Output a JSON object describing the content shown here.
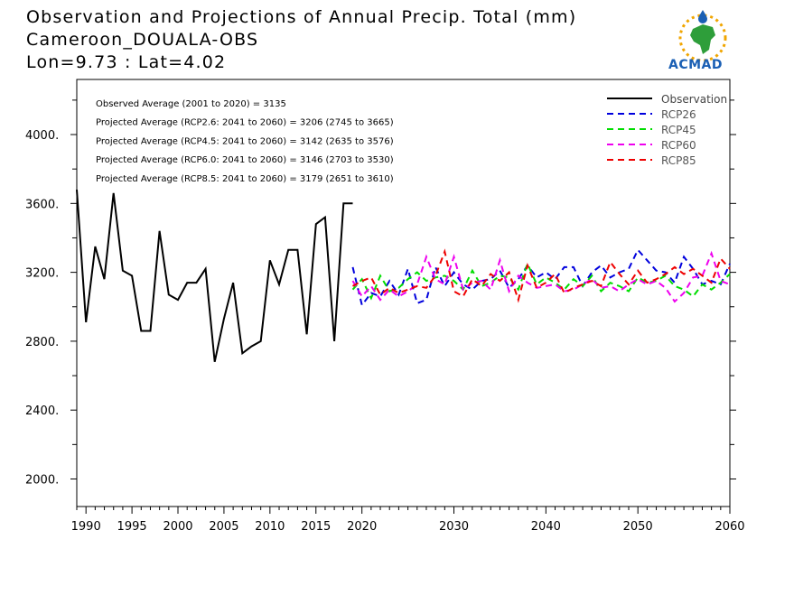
{
  "header": {
    "title": "Observation and Projections of Annual Precip. Total (mm)",
    "station": "Cameroon_DOUALA-OBS",
    "coords": "Lon=9.73 : Lat=4.02",
    "logo_text": "ACMAD"
  },
  "colors": {
    "Observation": "#000000",
    "RCP26": "#0000dd",
    "RCP45": "#00dd00",
    "RCP60": "#ee00ee",
    "RCP85": "#ee0000"
  },
  "chart_data": {
    "type": "line",
    "title": "Observation and Projections of Annual Precip. Total (mm)",
    "xlim": [
      1989,
      2060
    ],
    "ylim": [
      1840,
      4320
    ],
    "x_ticks": [
      1990,
      1995,
      2000,
      2005,
      2010,
      2015,
      2020,
      2030,
      2040,
      2050,
      2060
    ],
    "y_ticks": [
      2000,
      2400,
      2800,
      3200,
      3600,
      4000
    ],
    "y_tick_labels": [
      "2000.",
      "2400.",
      "2800.",
      "3200.",
      "3600.",
      "4000."
    ],
    "legend_position": "top-right",
    "annotations": [
      "Observed Average (2001 to 2020) = 3135",
      "Projected Average (RCP2.6: 2041 to 2060) = 3206 (2745 to 3665)",
      "Projected Average (RCP4.5: 2041 to 2060) = 3142 (2635 to 3576)",
      "Projected Average (RCP6.0: 2041 to 2060) = 3146 (2703 to 3530)",
      "Projected Average (RCP8.5: 2041 to 2060) = 3179 (2651 to 3610)"
    ],
    "series": [
      {
        "name": "Observation",
        "style": "solid",
        "x": [
          1989,
          1990,
          1991,
          1992,
          1993,
          1994,
          1995,
          1996,
          1997,
          1998,
          1999,
          2000,
          2001,
          2002,
          2003,
          2004,
          2005,
          2006,
          2007,
          2008,
          2009,
          2010,
          2011,
          2012,
          2013,
          2014,
          2015,
          2016,
          2017,
          2018,
          2019
        ],
        "y": [
          3680,
          2910,
          3350,
          3160,
          3660,
          3210,
          3180,
          2860,
          2860,
          3440,
          3070,
          3040,
          3140,
          3140,
          3220,
          2680,
          2930,
          3140,
          2730,
          2770,
          2800,
          3270,
          3130,
          3330,
          3330,
          2840,
          3480,
          3520,
          2800,
          3600,
          3600
        ]
      },
      {
        "name": "RCP26",
        "style": "dashed",
        "x": [
          2019,
          2020,
          2021,
          2022,
          2023,
          2024,
          2025,
          2026,
          2027,
          2028,
          2029,
          2030,
          2031,
          2032,
          2033,
          2034,
          2035,
          2036,
          2037,
          2038,
          2039,
          2040,
          2041,
          2042,
          2043,
          2044,
          2045,
          2046,
          2047,
          2048,
          2049,
          2050,
          2051,
          2052,
          2053,
          2054,
          2055,
          2056,
          2057,
          2058,
          2059,
          2060
        ],
        "y": [
          3230,
          3010,
          3080,
          3060,
          3150,
          3070,
          3220,
          3020,
          3040,
          3230,
          3120,
          3200,
          3130,
          3100,
          3150,
          3160,
          3210,
          3110,
          3160,
          3240,
          3170,
          3200,
          3160,
          3230,
          3230,
          3120,
          3200,
          3240,
          3170,
          3200,
          3220,
          3330,
          3270,
          3210,
          3200,
          3140,
          3290,
          3220,
          3130,
          3150,
          3130,
          3250
        ]
      },
      {
        "name": "RCP45",
        "style": "dashed",
        "x": [
          2019,
          2020,
          2021,
          2022,
          2023,
          2024,
          2025,
          2026,
          2027,
          2028,
          2029,
          2030,
          2031,
          2032,
          2033,
          2034,
          2035,
          2036,
          2037,
          2038,
          2039,
          2040,
          2041,
          2042,
          2043,
          2044,
          2045,
          2046,
          2047,
          2048,
          2049,
          2050,
          2051,
          2052,
          2053,
          2054,
          2055,
          2056,
          2057,
          2058,
          2059,
          2060
        ],
        "y": [
          3100,
          3160,
          3050,
          3180,
          3090,
          3110,
          3160,
          3200,
          3150,
          3170,
          3180,
          3150,
          3100,
          3210,
          3120,
          3140,
          3180,
          3170,
          3100,
          3250,
          3130,
          3170,
          3140,
          3100,
          3160,
          3120,
          3180,
          3090,
          3140,
          3120,
          3090,
          3170,
          3140,
          3150,
          3180,
          3120,
          3100,
          3060,
          3130,
          3100,
          3140,
          3190
        ]
      },
      {
        "name": "RCP60",
        "style": "dashed",
        "x": [
          2019,
          2020,
          2021,
          2022,
          2023,
          2024,
          2025,
          2026,
          2027,
          2028,
          2029,
          2030,
          2031,
          2032,
          2033,
          2034,
          2035,
          2036,
          2037,
          2038,
          2039,
          2040,
          2041,
          2042,
          2043,
          2044,
          2045,
          2046,
          2047,
          2048,
          2049,
          2050,
          2051,
          2052,
          2053,
          2054,
          2055,
          2056,
          2057,
          2058,
          2059,
          2060
        ],
        "y": [
          3150,
          3060,
          3120,
          3040,
          3100,
          3060,
          3090,
          3130,
          3290,
          3160,
          3130,
          3290,
          3100,
          3140,
          3150,
          3100,
          3270,
          3090,
          3180,
          3140,
          3110,
          3120,
          3130,
          3090,
          3100,
          3130,
          3160,
          3110,
          3120,
          3090,
          3130,
          3160,
          3130,
          3150,
          3110,
          3030,
          3080,
          3170,
          3180,
          3310,
          3150,
          3130
        ]
      },
      {
        "name": "RCP85",
        "style": "dashed",
        "x": [
          2019,
          2020,
          2021,
          2022,
          2023,
          2024,
          2025,
          2026,
          2027,
          2028,
          2029,
          2030,
          2031,
          2032,
          2033,
          2034,
          2035,
          2036,
          2037,
          2038,
          2039,
          2040,
          2041,
          2042,
          2043,
          2044,
          2045,
          2046,
          2047,
          2048,
          2049,
          2050,
          2051,
          2052,
          2053,
          2054,
          2055,
          2056,
          2057,
          2058,
          2059,
          2060
        ],
        "y": [
          3120,
          3150,
          3170,
          3070,
          3110,
          3080,
          3100,
          3120,
          3110,
          3180,
          3320,
          3090,
          3060,
          3160,
          3120,
          3190,
          3150,
          3200,
          3040,
          3240,
          3110,
          3140,
          3190,
          3080,
          3110,
          3130,
          3150,
          3120,
          3260,
          3190,
          3130,
          3210,
          3140,
          3160,
          3190,
          3230,
          3190,
          3220,
          3180,
          3140,
          3280,
          3220
        ]
      }
    ]
  }
}
